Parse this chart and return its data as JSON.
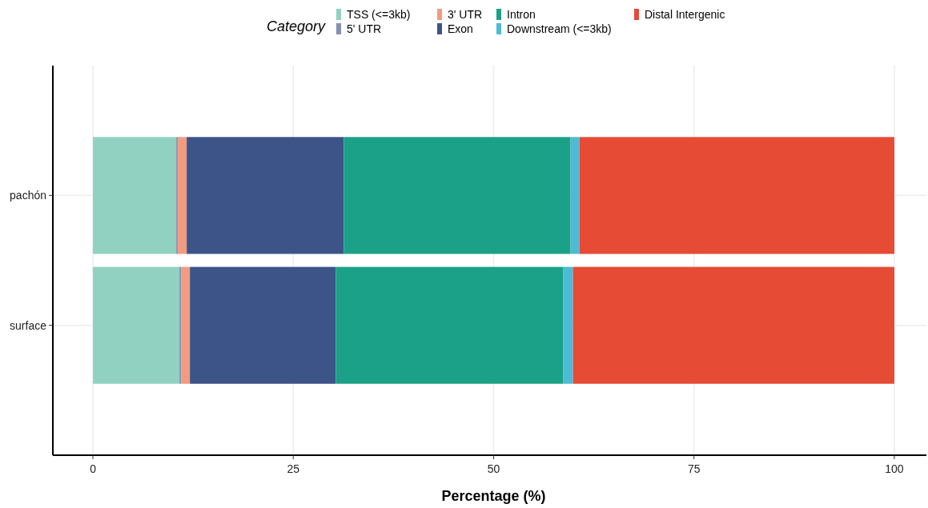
{
  "chart_data": {
    "type": "bar",
    "orientation": "horizontal",
    "stacked": true,
    "categories": [
      "pachón",
      "surface"
    ],
    "series": [
      {
        "name": "TSS (<=3kb)",
        "color": "#91d1c2",
        "values": [
          10.4,
          10.8
        ]
      },
      {
        "name": "5' UTR",
        "color": "#8491b4",
        "values": [
          0.2,
          0.2
        ]
      },
      {
        "name": "3' UTR",
        "color": "#f39b7f",
        "values": [
          1.1,
          1.1
        ]
      },
      {
        "name": "Exon",
        "color": "#3c5488",
        "values": [
          19.6,
          18.2
        ]
      },
      {
        "name": "Intron",
        "color": "#1ba187",
        "values": [
          28.3,
          28.4
        ]
      },
      {
        "name": "Downstream (<=3kb)",
        "color": "#4dbbd5",
        "values": [
          1.1,
          1.2
        ]
      },
      {
        "name": "Distal Intergenic",
        "color": "#e64b35",
        "values": [
          39.3,
          40.1
        ]
      }
    ],
    "xlabel": "Percentage (%)",
    "legend_title": "Category",
    "legend": "top",
    "xlim": [
      -5,
      104
    ],
    "xticks": [
      0,
      25,
      50,
      75,
      100
    ],
    "grid": true
  }
}
